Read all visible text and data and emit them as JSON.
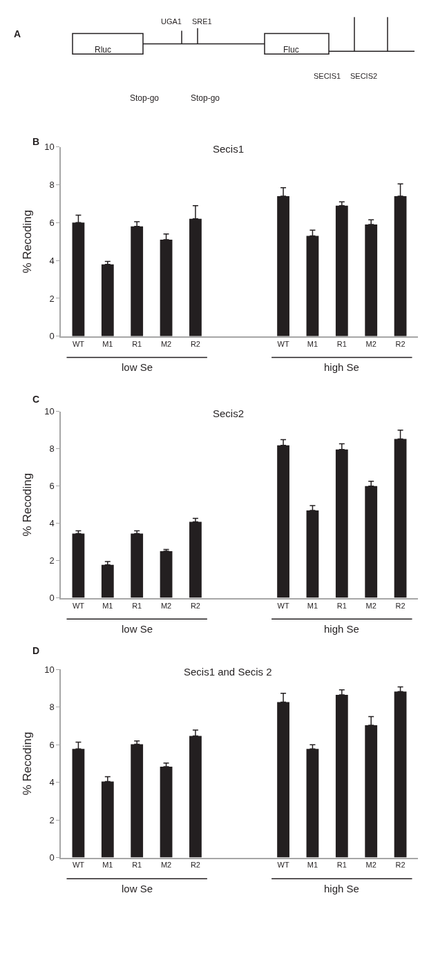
{
  "chart_data": [
    {
      "type": "other",
      "annotations": [
        "A",
        "Rluc",
        "Fluc",
        "UGA1",
        "SRE1",
        "Stop-go",
        "Stop-go",
        "SECIS1",
        "SECIS2"
      ]
    },
    {
      "type": "bar",
      "title": "Secis1",
      "ylabel": "% Recoding",
      "categories": [
        "WT",
        "M1",
        "R1",
        "M2",
        "R2",
        null,
        null,
        "WT",
        "M1",
        "R1",
        "M2",
        "R2"
      ],
      "values": [
        6.0,
        3.8,
        5.8,
        5.1,
        6.2,
        null,
        null,
        7.4,
        5.3,
        6.9,
        5.9,
        7.4
      ],
      "errors": [
        [
          6.0,
          6.4
        ],
        [
          3.8,
          3.95
        ],
        [
          5.8,
          6.05
        ],
        [
          5.1,
          5.4
        ],
        [
          6.2,
          6.9
        ],
        null,
        null,
        [
          7.4,
          7.85
        ],
        [
          5.3,
          5.6
        ],
        [
          6.9,
          7.1
        ],
        [
          5.9,
          6.15
        ],
        [
          7.4,
          8.05
        ]
      ],
      "color": "#231f20",
      "ylim": [
        0,
        10
      ],
      "yticks": [
        0,
        2,
        4,
        6,
        8,
        10
      ],
      "annotations": [
        "B",
        "low Se",
        "high Se"
      ]
    },
    {
      "type": "bar",
      "title": "Secis2",
      "ylabel": "% Recoding",
      "categories": [
        "WT",
        "M1",
        "R1",
        "M2",
        "R2",
        null,
        null,
        "WT",
        "M1",
        "R1",
        "M2",
        "R2"
      ],
      "values": [
        3.45,
        1.77,
        3.45,
        2.5,
        4.08,
        null,
        null,
        8.18,
        4.69,
        7.96,
        5.99,
        8.52
      ],
      "errors": [
        [
          3.45,
          3.6
        ],
        [
          1.77,
          1.95
        ],
        [
          3.45,
          3.6
        ],
        [
          2.5,
          2.6
        ],
        [
          4.08,
          4.26
        ],
        null,
        null,
        [
          8.18,
          8.48
        ],
        [
          4.69,
          4.95
        ],
        [
          7.96,
          8.26
        ],
        [
          5.99,
          6.25
        ],
        [
          8.52,
          8.99
        ]
      ],
      "color": "#231f20",
      "ylim": [
        0,
        10
      ],
      "yticks": [
        0,
        2,
        4,
        6,
        8,
        10
      ],
      "annotations": [
        "C",
        "low Se",
        "high Se"
      ]
    },
    {
      "type": "bar",
      "title": "Secis1 and Secis 2",
      "ylabel": "% Recoding",
      "categories": [
        "WT",
        "M1",
        "R1",
        "M2",
        "R2",
        null,
        null,
        "WT",
        "M1",
        "R1",
        "M2",
        "R2"
      ],
      "values": [
        5.78,
        4.04,
        6.03,
        4.83,
        6.47,
        null,
        null,
        8.27,
        5.78,
        8.66,
        7.04,
        8.83
      ],
      "errors": [
        [
          5.78,
          6.14
        ],
        [
          4.04,
          4.3
        ],
        [
          6.03,
          6.2
        ],
        [
          4.83,
          5.03
        ],
        [
          6.47,
          6.78
        ],
        null,
        null,
        [
          8.27,
          8.74
        ],
        [
          5.78,
          6.0
        ],
        [
          8.66,
          8.92
        ],
        [
          7.04,
          7.5
        ],
        [
          8.83,
          9.08
        ]
      ],
      "color": "#231f20",
      "ylim": [
        0,
        10
      ],
      "yticks": [
        0,
        2,
        4,
        6,
        8,
        10
      ],
      "annotations": [
        "D",
        "low Se",
        "high Se"
      ]
    }
  ]
}
